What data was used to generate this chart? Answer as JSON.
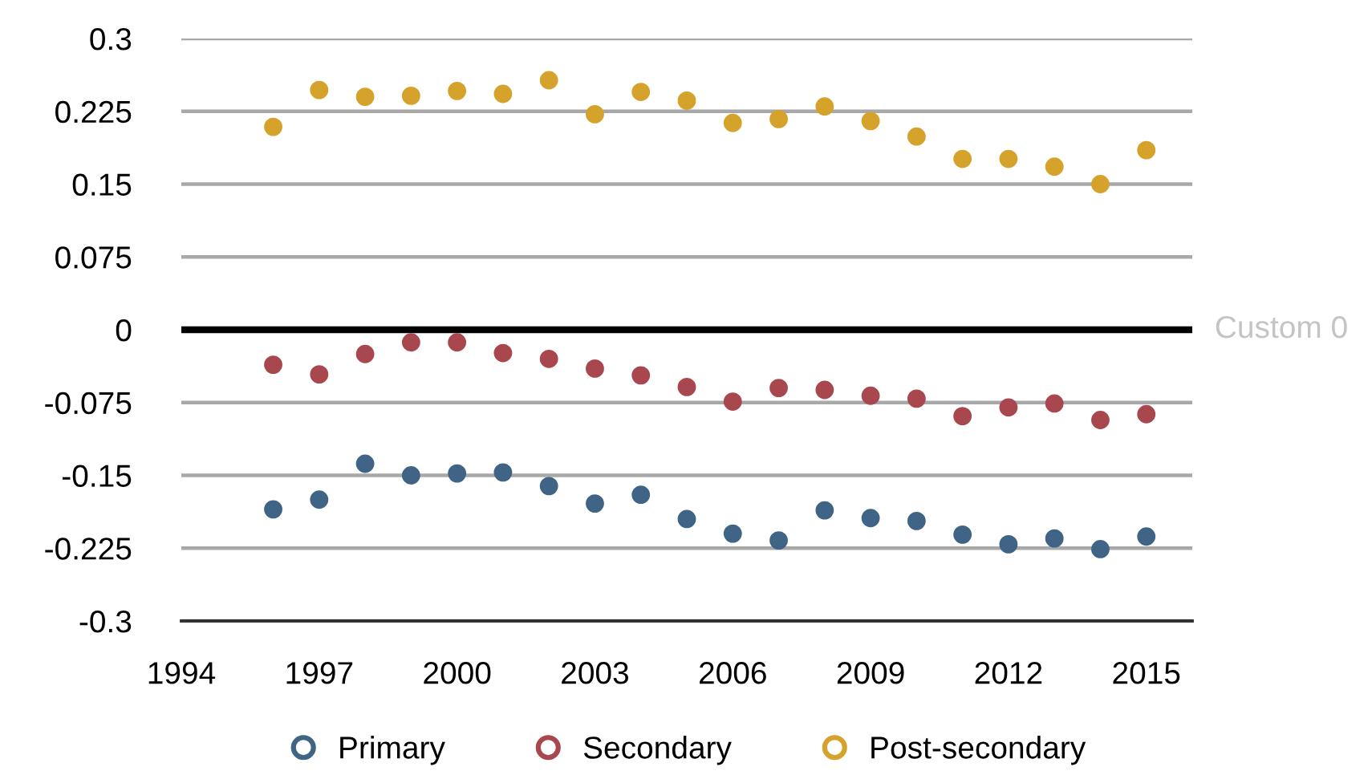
{
  "chart_data": {
    "type": "scatter",
    "x": [
      1996,
      1997,
      1998,
      1999,
      2000,
      2001,
      2002,
      2003,
      2004,
      2005,
      2006,
      2007,
      2008,
      2009,
      2010,
      2011,
      2012,
      2013,
      2014,
      2015
    ],
    "series": [
      {
        "name": "Primary",
        "color": "#3f6485",
        "values": [
          -0.185,
          -0.175,
          -0.138,
          -0.15,
          -0.148,
          -0.147,
          -0.161,
          -0.179,
          -0.17,
          -0.195,
          -0.21,
          -0.217,
          -0.186,
          -0.194,
          -0.197,
          -0.211,
          -0.221,
          -0.215,
          -0.226,
          -0.213
        ]
      },
      {
        "name": "Secondary",
        "color": "#a9474f",
        "values": [
          -0.036,
          -0.046,
          -0.025,
          -0.013,
          -0.013,
          -0.024,
          -0.03,
          -0.04,
          -0.047,
          -0.059,
          -0.074,
          -0.06,
          -0.062,
          -0.068,
          -0.071,
          -0.089,
          -0.08,
          -0.076,
          -0.093,
          -0.087
        ]
      },
      {
        "name": "Post-secondary",
        "color": "#d5a22c",
        "values": [
          0.209,
          0.247,
          0.24,
          0.241,
          0.246,
          0.243,
          0.257,
          0.222,
          0.245,
          0.236,
          0.213,
          0.217,
          0.23,
          0.215,
          0.199,
          0.176,
          0.176,
          0.168,
          0.15,
          0.185
        ]
      }
    ],
    "xlim": [
      1994,
      2016
    ],
    "xticks": [
      1994,
      1997,
      2000,
      2003,
      2006,
      2009,
      2012,
      2015
    ],
    "ylim": [
      -0.3,
      0.3
    ],
    "yticks": [
      -0.3,
      -0.225,
      -0.15,
      -0.075,
      0,
      0.075,
      0.15,
      0.225,
      0.3
    ],
    "grid": "y",
    "legend": "bottom",
    "marker": "circle",
    "ref_lines": [
      {
        "axis": "y",
        "value": 0,
        "label": "Custom 0",
        "color": "#000000"
      }
    ]
  }
}
